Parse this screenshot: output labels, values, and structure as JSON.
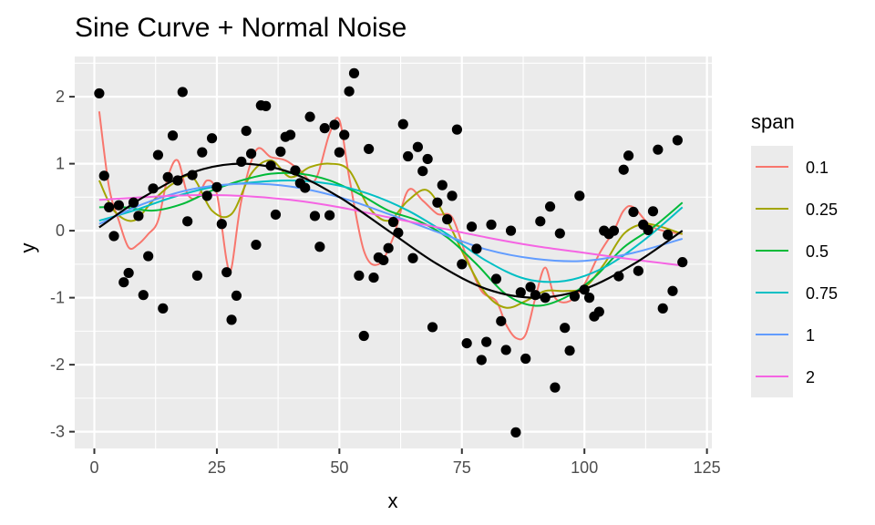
{
  "chart_data": {
    "type": "scatter",
    "title": "Sine Curve + Normal Noise",
    "xlabel": "x",
    "ylabel": "y",
    "xlim": [
      -4,
      126
    ],
    "ylim": [
      -3.25,
      2.6
    ],
    "xticks": [
      0,
      25,
      50,
      75,
      100,
      125
    ],
    "yticks": [
      -3,
      -2,
      -1,
      0,
      1,
      2
    ],
    "xtick_labels": [
      "0",
      "25",
      "50",
      "75",
      "100",
      "125"
    ],
    "ytick_labels": [
      "-3",
      "-2",
      "-1",
      "0",
      "1",
      "2"
    ],
    "grid": true,
    "legend": {
      "title": "span",
      "position": "right"
    },
    "colors": {
      "panel": "#ebebeb",
      "grid": "#ffffff",
      "points": "#000000",
      "true_curve": "#000000"
    },
    "points": [
      [
        1,
        2.05
      ],
      [
        2,
        0.82
      ],
      [
        3,
        0.35
      ],
      [
        4,
        -0.08
      ],
      [
        5,
        0.38
      ],
      [
        6,
        -0.77
      ],
      [
        7,
        -0.63
      ],
      [
        8,
        0.42
      ],
      [
        9,
        0.22
      ],
      [
        10,
        -0.96
      ],
      [
        11,
        -0.38
      ],
      [
        12,
        0.63
      ],
      [
        13,
        1.13
      ],
      [
        14,
        -1.16
      ],
      [
        15,
        0.8
      ],
      [
        16,
        1.42
      ],
      [
        17,
        0.75
      ],
      [
        18,
        2.07
      ],
      [
        19,
        0.14
      ],
      [
        20,
        0.83
      ],
      [
        21,
        -0.67
      ],
      [
        22,
        1.17
      ],
      [
        23,
        0.52
      ],
      [
        24,
        1.38
      ],
      [
        25,
        0.65
      ],
      [
        26,
        0.1
      ],
      [
        27,
        -0.62
      ],
      [
        28,
        -1.33
      ],
      [
        29,
        -0.97
      ],
      [
        30,
        1.03
      ],
      [
        31,
        1.49
      ],
      [
        32,
        1.15
      ],
      [
        33,
        -0.21
      ],
      [
        34,
        1.87
      ],
      [
        35,
        1.86
      ],
      [
        36,
        0.97
      ],
      [
        37,
        0.24
      ],
      [
        38,
        1.18
      ],
      [
        39,
        1.4
      ],
      [
        40,
        1.43
      ],
      [
        41,
        0.9
      ],
      [
        42,
        0.71
      ],
      [
        43,
        0.64
      ],
      [
        44,
        1.7
      ],
      [
        45,
        0.22
      ],
      [
        46,
        -0.24
      ],
      [
        47,
        1.53
      ],
      [
        48,
        0.23
      ],
      [
        49,
        1.58
      ],
      [
        50,
        1.17
      ],
      [
        51,
        1.43
      ],
      [
        52,
        2.08
      ],
      [
        53,
        2.35
      ],
      [
        54,
        -0.67
      ],
      [
        55,
        -1.57
      ],
      [
        56,
        1.22
      ],
      [
        57,
        -0.7
      ],
      [
        58,
        -0.4
      ],
      [
        59,
        -0.44
      ],
      [
        60,
        -0.26
      ],
      [
        61,
        0.13
      ],
      [
        62,
        -0.03
      ],
      [
        63,
        1.59
      ],
      [
        64,
        1.11
      ],
      [
        65,
        -0.41
      ],
      [
        66,
        1.25
      ],
      [
        67,
        0.89
      ],
      [
        68,
        1.07
      ],
      [
        69,
        -1.44
      ],
      [
        70,
        0.42
      ],
      [
        71,
        0.68
      ],
      [
        72,
        0.17
      ],
      [
        73,
        0.52
      ],
      [
        74,
        1.51
      ],
      [
        75,
        -0.5
      ],
      [
        76,
        -1.68
      ],
      [
        77,
        0.06
      ],
      [
        78,
        -0.27
      ],
      [
        79,
        -1.93
      ],
      [
        80,
        -1.66
      ],
      [
        81,
        0.09
      ],
      [
        82,
        -0.72
      ],
      [
        83,
        -1.35
      ],
      [
        84,
        -1.78
      ],
      [
        85,
        0.0
      ],
      [
        86,
        -3.01
      ],
      [
        87,
        -0.92
      ],
      [
        88,
        -1.91
      ],
      [
        89,
        -0.84
      ],
      [
        90,
        -0.96
      ],
      [
        91,
        0.14
      ],
      [
        92,
        -1.0
      ],
      [
        93,
        0.36
      ],
      [
        94,
        -2.34
      ],
      [
        95,
        -0.04
      ],
      [
        96,
        -1.45
      ],
      [
        97,
        -1.79
      ],
      [
        98,
        -0.98
      ],
      [
        99,
        0.52
      ],
      [
        100,
        -0.88
      ],
      [
        101,
        -1.0
      ],
      [
        102,
        -1.28
      ],
      [
        103,
        -1.21
      ],
      [
        104,
        0.0
      ],
      [
        105,
        -0.05
      ],
      [
        106,
        0.0
      ],
      [
        107,
        -0.68
      ],
      [
        108,
        0.91
      ],
      [
        109,
        1.12
      ],
      [
        110,
        0.28
      ],
      [
        111,
        -0.6
      ],
      [
        112,
        0.09
      ],
      [
        113,
        0.01
      ],
      [
        114,
        0.29
      ],
      [
        115,
        1.21
      ],
      [
        116,
        -1.16
      ],
      [
        117,
        -0.06
      ],
      [
        118,
        -0.9
      ],
      [
        119,
        1.35
      ],
      [
        120,
        -0.47
      ]
    ],
    "true_curve": {
      "x": [
        1,
        10,
        20,
        30,
        40,
        50,
        60,
        70,
        80,
        90,
        100,
        110,
        120
      ],
      "y": [
        0.05,
        0.5,
        0.87,
        1.0,
        0.87,
        0.5,
        0.0,
        -0.5,
        -0.87,
        -1.0,
        -0.87,
        -0.5,
        0.0
      ]
    },
    "series": [
      {
        "name": "0.1",
        "color": "#f8766d",
        "x": [
          1,
          3,
          5,
          7,
          9,
          11,
          13,
          15,
          17,
          19,
          21,
          23,
          25,
          27,
          28,
          30,
          33,
          36,
          39,
          42,
          45,
          48,
          50,
          52,
          55,
          58,
          61,
          64,
          67,
          70,
          73,
          76,
          79,
          82,
          84,
          86,
          88,
          90,
          92,
          94,
          97,
          100,
          103,
          106,
          108,
          110,
          114,
          120
        ],
        "y": [
          1.78,
          0.65,
          0.15,
          -0.25,
          -0.2,
          -0.05,
          0.15,
          0.8,
          1.05,
          0.55,
          0.5,
          0.75,
          0.55,
          -0.45,
          -0.55,
          0.45,
          1.2,
          1.1,
          1.05,
          0.9,
          0.75,
          1.45,
          1.65,
          0.8,
          -0.3,
          -0.5,
          -0.1,
          0.6,
          0.45,
          0.25,
          0.2,
          -0.4,
          -0.9,
          -1.05,
          -1.4,
          -1.6,
          -1.55,
          -1.0,
          -0.55,
          -1.0,
          -1.05,
          -0.8,
          -0.35,
          0.0,
          0.3,
          0.35,
          0.05,
          -0.05
        ]
      },
      {
        "name": "0.25",
        "color": "#a3a500",
        "x": [
          1,
          4,
          8,
          12,
          16,
          20,
          24,
          28,
          32,
          36,
          40,
          44,
          48,
          52,
          56,
          60,
          64,
          68,
          72,
          76,
          80,
          84,
          88,
          92,
          96,
          100,
          104,
          108,
          112,
          116,
          120
        ],
        "y": [
          0.75,
          0.3,
          0.15,
          0.45,
          0.7,
          0.8,
          0.3,
          0.25,
          0.85,
          1.05,
          0.8,
          0.95,
          1.0,
          0.9,
          0.35,
          0.15,
          0.45,
          0.6,
          0.15,
          -0.45,
          -0.95,
          -1.15,
          -1.05,
          -0.9,
          -0.9,
          -0.85,
          -0.5,
          -0.05,
          0.1,
          0.05,
          -0.05
        ]
      },
      {
        "name": "0.5",
        "color": "#00ba38",
        "x": [
          1,
          6,
          12,
          18,
          24,
          30,
          36,
          42,
          48,
          54,
          60,
          66,
          72,
          78,
          84,
          90,
          96,
          102,
          108,
          114,
          120
        ],
        "y": [
          0.35,
          0.35,
          0.3,
          0.4,
          0.6,
          0.75,
          0.85,
          0.85,
          0.75,
          0.55,
          0.3,
          0.15,
          -0.1,
          -0.5,
          -0.95,
          -1.12,
          -1.0,
          -0.7,
          -0.25,
          0.05,
          0.42
        ]
      },
      {
        "name": "0.75",
        "color": "#00bfc4",
        "x": [
          1,
          8,
          16,
          24,
          32,
          40,
          48,
          56,
          64,
          72,
          80,
          88,
          96,
          104,
          112,
          120
        ],
        "y": [
          0.15,
          0.3,
          0.5,
          0.65,
          0.72,
          0.75,
          0.7,
          0.55,
          0.3,
          -0.05,
          -0.45,
          -0.72,
          -0.75,
          -0.55,
          -0.15,
          0.35
        ]
      },
      {
        "name": "1",
        "color": "#619cff",
        "x": [
          1,
          10,
          20,
          30,
          40,
          50,
          60,
          70,
          80,
          90,
          100,
          110,
          120
        ],
        "y": [
          0.1,
          0.4,
          0.62,
          0.7,
          0.66,
          0.5,
          0.25,
          -0.02,
          -0.28,
          -0.42,
          -0.45,
          -0.33,
          -0.12
        ]
      },
      {
        "name": "2",
        "color": "#f564e3",
        "x": [
          1,
          10,
          20,
          30,
          40,
          50,
          60,
          70,
          80,
          90,
          100,
          110,
          120
        ],
        "y": [
          0.46,
          0.5,
          0.53,
          0.52,
          0.46,
          0.35,
          0.2,
          0.05,
          -0.1,
          -0.23,
          -0.33,
          -0.43,
          -0.52
        ]
      }
    ]
  }
}
